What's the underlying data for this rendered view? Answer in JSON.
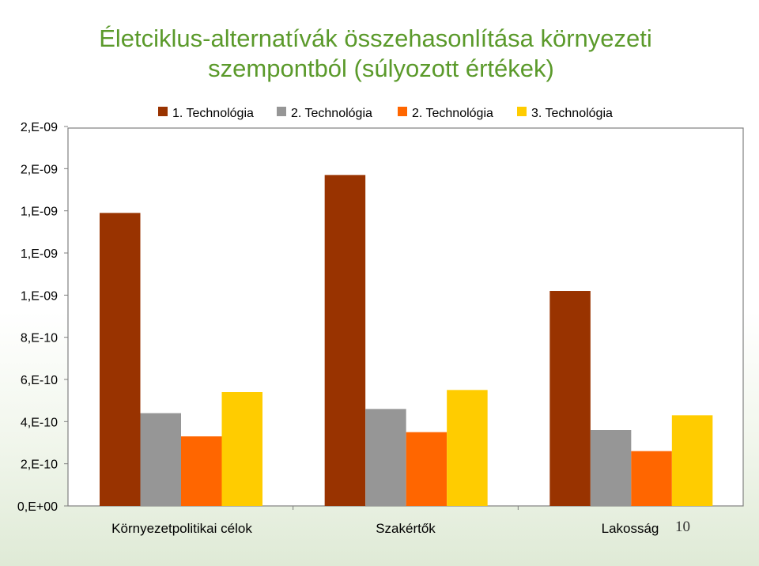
{
  "title_line1": "Életciklus-alternatívák összehasonlítása környezeti",
  "title_line2": "szempontból (súlyozott értékek)",
  "slide_number": "10",
  "chart_data": {
    "type": "bar",
    "categories": [
      "Környezetpolitikai célok",
      "Szakértők",
      "Lakosság"
    ],
    "series": [
      {
        "name": "1. Technológia",
        "color": "#993300",
        "values": [
          1.39e-09,
          1.57e-09,
          1.02e-09
        ]
      },
      {
        "name": "2. Technológia",
        "color": "#969696",
        "values": [
          4.4e-10,
          4.6e-10,
          3.6e-10
        ]
      },
      {
        "name": "2. Technológia",
        "color": "#ff6600",
        "values": [
          3.3e-10,
          3.5e-10,
          2.6e-10
        ]
      },
      {
        "name": "3. Technológia",
        "color": "#ffcc00",
        "values": [
          5.4e-10,
          5.5e-10,
          4.3e-10
        ]
      }
    ],
    "ytick_labels": [
      "0,E+00",
      "2,E-10",
      "4,E-10",
      "6,E-10",
      "8,E-10",
      "1,E-09",
      "1,E-09",
      "1,E-09",
      "2,E-09",
      "2,E-09"
    ],
    "ylim": [
      0,
      1.8e-09
    ],
    "ytick_step": 2e-10,
    "legend_position": "top",
    "grid": false
  }
}
